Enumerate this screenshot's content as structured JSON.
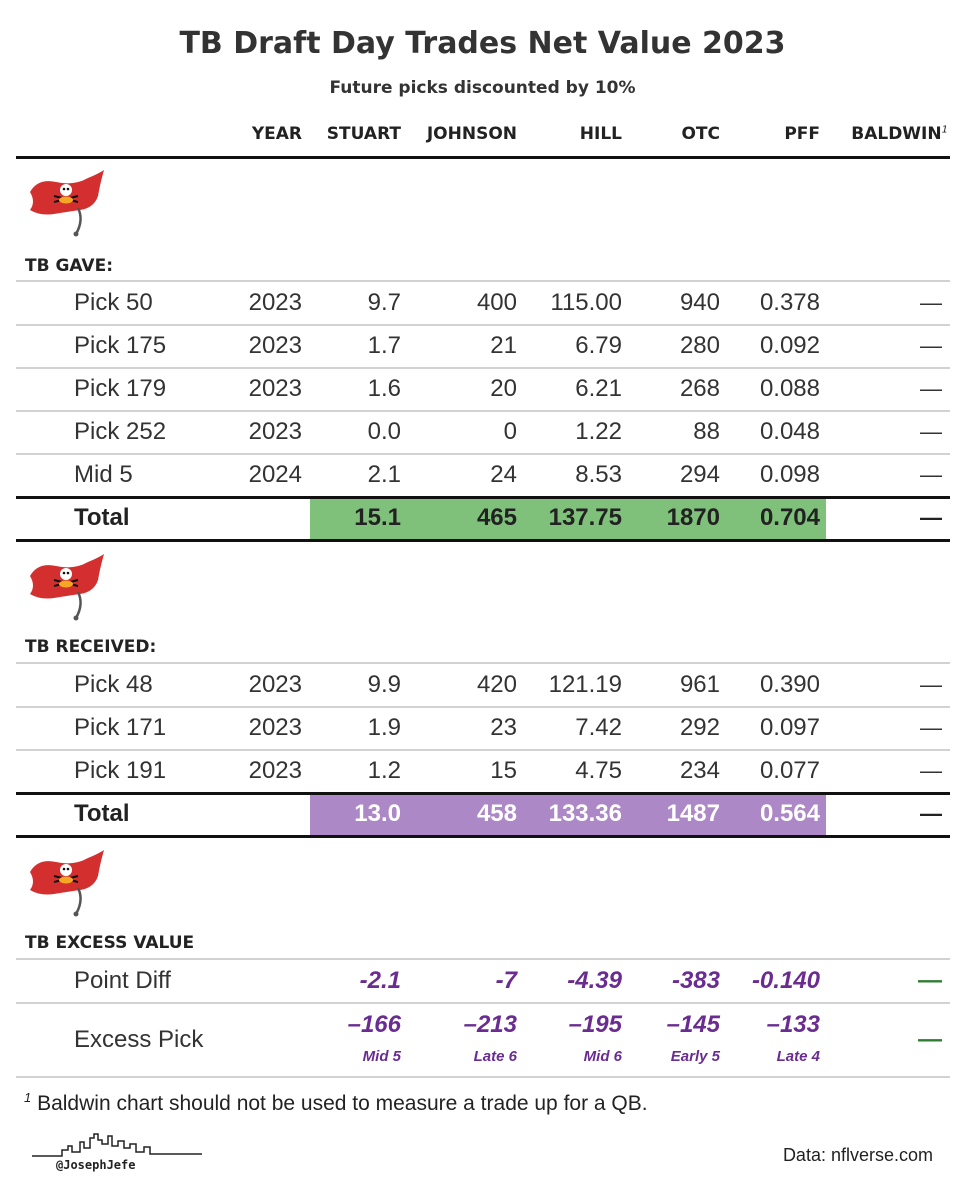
{
  "title": "TB Draft Day Trades Net Value 2023",
  "subtitle": "Future picks discounted by 10%",
  "columns": {
    "year": "YEAR",
    "stuart": "STUART",
    "johnson": "JOHNSON",
    "hill": "HILL",
    "otc": "OTC",
    "pff": "PFF",
    "baldwin": "BALDWIN",
    "baldwin_note": "1"
  },
  "gave": {
    "label": "TB GAVE:",
    "rows": [
      {
        "name": "Pick 50",
        "year": "2023",
        "stuart": "9.7",
        "johnson": "400",
        "hill": "115.00",
        "otc": "940",
        "pff": "0.378",
        "baldwin": "—"
      },
      {
        "name": "Pick 175",
        "year": "2023",
        "stuart": "1.7",
        "johnson": "21",
        "hill": "6.79",
        "otc": "280",
        "pff": "0.092",
        "baldwin": "—"
      },
      {
        "name": "Pick 179",
        "year": "2023",
        "stuart": "1.6",
        "johnson": "20",
        "hill": "6.21",
        "otc": "268",
        "pff": "0.088",
        "baldwin": "—"
      },
      {
        "name": "Pick 252",
        "year": "2023",
        "stuart": "0.0",
        "johnson": "0",
        "hill": "1.22",
        "otc": "88",
        "pff": "0.048",
        "baldwin": "—"
      },
      {
        "name": "Mid 5",
        "year": "2024",
        "stuart": "2.1",
        "johnson": "24",
        "hill": "8.53",
        "otc": "294",
        "pff": "0.098",
        "baldwin": "—"
      }
    ],
    "total": {
      "name": "Total",
      "stuart": "15.1",
      "johnson": "465",
      "hill": "137.75",
      "otc": "1870",
      "pff": "0.704",
      "baldwin": "—"
    }
  },
  "received": {
    "label": "TB RECEIVED:",
    "rows": [
      {
        "name": "Pick 48",
        "year": "2023",
        "stuart": "9.9",
        "johnson": "420",
        "hill": "121.19",
        "otc": "961",
        "pff": "0.390",
        "baldwin": "—"
      },
      {
        "name": "Pick 171",
        "year": "2023",
        "stuart": "1.9",
        "johnson": "23",
        "hill": "7.42",
        "otc": "292",
        "pff": "0.097",
        "baldwin": "—"
      },
      {
        "name": "Pick 191",
        "year": "2023",
        "stuart": "1.2",
        "johnson": "15",
        "hill": "4.75",
        "otc": "234",
        "pff": "0.077",
        "baldwin": "—"
      }
    ],
    "total": {
      "name": "Total",
      "stuart": "13.0",
      "johnson": "458",
      "hill": "133.36",
      "otc": "1487",
      "pff": "0.564",
      "baldwin": "—"
    }
  },
  "excess": {
    "label": "TB EXCESS VALUE",
    "point_diff": {
      "name": "Point Diff",
      "stuart": "-2.1",
      "johnson": "-7",
      "hill": "-4.39",
      "otc": "-383",
      "pff": "-0.140",
      "baldwin": "—"
    },
    "excess_pick": {
      "name": "Excess Pick",
      "stuart": "–166",
      "johnson": "–213",
      "hill": "–195",
      "otc": "–145",
      "pff": "–133",
      "baldwin": "—",
      "stuart_sub": "Mid 5",
      "johnson_sub": "Late 6",
      "hill_sub": "Mid 6",
      "otc_sub": "Early 5",
      "pff_sub": "Late 4"
    }
  },
  "footnote": {
    "mark": "1",
    "text": "Baldwin chart should not be used to measure a trade up for a QB."
  },
  "credit": "@JosephJefe",
  "source": "Data: nflverse.com",
  "colors": {
    "green_highlight": "#7fc07a",
    "purple_highlight": "#ad88c6",
    "excess_text": "#6a2c91",
    "green_dash": "#2f7d32",
    "flag_red": "#d32f2f"
  },
  "icons": {
    "team_logo": "buccaneers-flag-icon",
    "skyline": "city-skyline-icon"
  }
}
